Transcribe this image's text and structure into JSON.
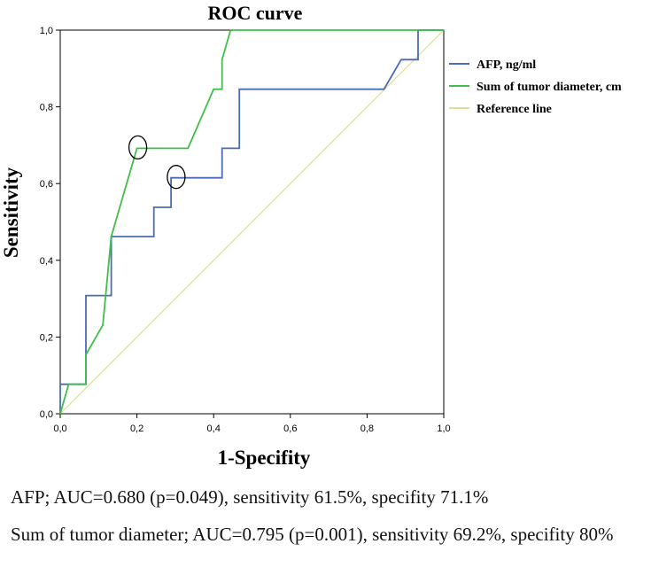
{
  "chart_data": {
    "type": "line",
    "title": "ROC curve",
    "xlabel": "1-Specifity",
    "ylabel": "Sensitivity",
    "xlim": [
      0,
      1
    ],
    "ylim": [
      0,
      1
    ],
    "xticks": [
      "0,0",
      "0,2",
      "0,4",
      "0,6",
      "0,8",
      "1,0"
    ],
    "yticks": [
      "0,0",
      "0,2",
      "0,4",
      "0,6",
      "0,8",
      "1,0"
    ],
    "grid": false,
    "legend_position": "right",
    "series": [
      {
        "name": "AFP, ng/ml",
        "color": "#4a6bb5",
        "x": [
          0.0,
          0.0,
          0.067,
          0.067,
          0.133,
          0.133,
          0.244,
          0.244,
          0.289,
          0.289,
          0.422,
          0.422,
          0.467,
          0.467,
          0.844,
          0.889,
          0.889,
          0.933,
          0.933,
          1.0
        ],
        "y": [
          0.0,
          0.077,
          0.077,
          0.308,
          0.308,
          0.462,
          0.462,
          0.538,
          0.538,
          0.615,
          0.615,
          0.692,
          0.692,
          0.846,
          0.846,
          0.923,
          0.923,
          0.923,
          1.0,
          1.0
        ]
      },
      {
        "name": "Sum of tumor diameter, cm",
        "color": "#3fbe4a",
        "x": [
          0.0,
          0.022,
          0.067,
          0.067,
          0.111,
          0.133,
          0.2,
          0.333,
          0.4,
          0.422,
          0.422,
          0.444,
          1.0
        ],
        "y": [
          0.0,
          0.077,
          0.077,
          0.154,
          0.231,
          0.462,
          0.692,
          0.692,
          0.846,
          0.846,
          0.923,
          1.0,
          1.0
        ]
      },
      {
        "name": "Reference line",
        "color": "#dede9a",
        "x": [
          0,
          1
        ],
        "y": [
          0,
          1
        ]
      }
    ],
    "annotations": [
      {
        "type": "ellipse-marker",
        "series": "Sum of tumor diameter, cm",
        "x": 0.2,
        "y": 0.692
      },
      {
        "type": "ellipse-marker",
        "series": "AFP, ng/ml",
        "x": 0.3,
        "y": 0.615
      }
    ]
  },
  "captions": {
    "afp": "AFP; AUC=0.680 (p=0.049), sensitivity 61.5%, specifity 71.1%",
    "sum": "Sum of tumor diameter; AUC=0.795 (p=0.001), sensitivity 69.2%, specifity 80%"
  }
}
